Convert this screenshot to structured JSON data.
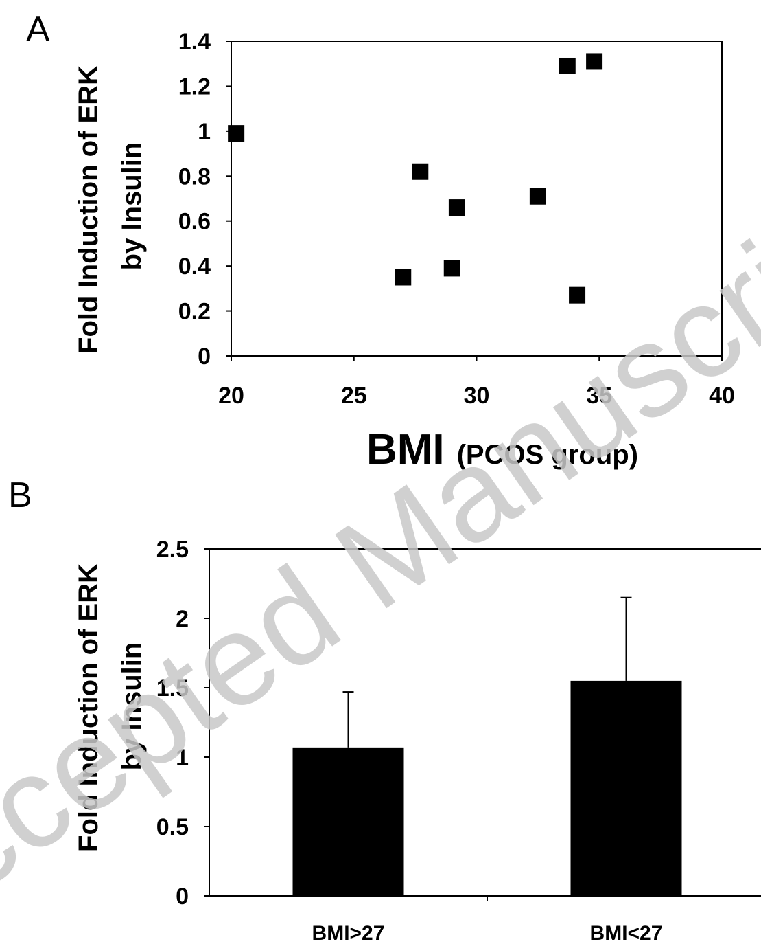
{
  "chart_data": [
    {
      "panel": "A",
      "type": "scatter",
      "ylabel_line1": "Fold Induction of ERK",
      "ylabel_line2": "by Insulin",
      "xlabel_main": "BMI",
      "xlabel_sub": "(PCOS group)",
      "xlim": [
        20,
        40
      ],
      "ylim": [
        0,
        1.4
      ],
      "xticks": [
        "20",
        "25",
        "30",
        "35",
        "40"
      ],
      "yticks": [
        "0",
        "0.2",
        "0.4",
        "0.6",
        "0.8",
        "1",
        "1.2",
        "1.4"
      ],
      "points": [
        {
          "x": 20.2,
          "y": 0.99
        },
        {
          "x": 27.0,
          "y": 0.35
        },
        {
          "x": 27.7,
          "y": 0.82
        },
        {
          "x": 29.0,
          "y": 0.39
        },
        {
          "x": 29.2,
          "y": 0.66
        },
        {
          "x": 32.5,
          "y": 0.71
        },
        {
          "x": 33.7,
          "y": 1.29
        },
        {
          "x": 34.1,
          "y": 0.27
        },
        {
          "x": 34.8,
          "y": 1.31
        }
      ],
      "marker_color": "#000000"
    },
    {
      "panel": "B",
      "type": "bar",
      "ylabel_line1": "Fold Induction of ERK",
      "ylabel_line2": "by Insulin",
      "categories": [
        "BMI>27",
        "BMI<27"
      ],
      "values": [
        1.07,
        1.55
      ],
      "errors": [
        0.4,
        0.6
      ],
      "ylim": [
        0,
        2.5
      ],
      "yticks": [
        "0",
        "0.5",
        "1",
        "1.5",
        "2",
        "2.5"
      ],
      "bar_color": "#000000"
    }
  ],
  "watermark": "Accepted Manuscript"
}
